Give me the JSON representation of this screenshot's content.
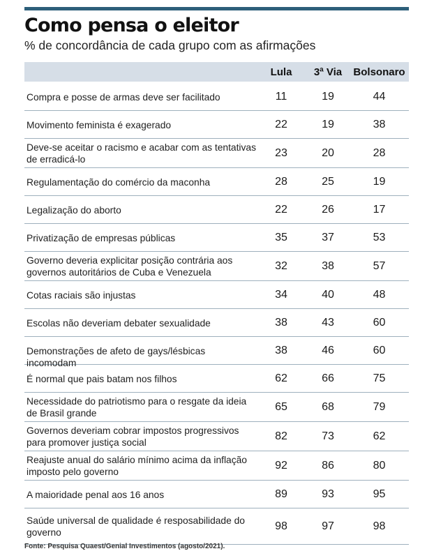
{
  "title": "Como pensa o eleitor",
  "subtitle": "% de concordância de cada grupo com as afirmações",
  "source": "Fonte: Pesquisa Quaest/Genial Investimentos (agosto/2021).",
  "colors": {
    "accent": "#2d5f7a",
    "header_bg": "#d6dee7",
    "rule": "#9eb0bd"
  },
  "chart_data": {
    "type": "table",
    "title": "Como pensa o eleitor",
    "subtitle": "% de concordância de cada grupo com as afirmações",
    "columns": [
      "Lula",
      "3ª Via",
      "Bolsonaro"
    ],
    "rows": [
      {
        "statement": "Compra e posse de armas deve ser facilitado",
        "values": [
          11,
          19,
          44
        ]
      },
      {
        "statement": "Movimento feminista é exagerado",
        "values": [
          22,
          19,
          38
        ]
      },
      {
        "statement": "Deve-se aceitar o racismo e acabar com as tentativas de erradicá-lo",
        "values": [
          23,
          20,
          28
        ]
      },
      {
        "statement": "Regulamentação do comércio da maconha",
        "values": [
          28,
          25,
          19
        ]
      },
      {
        "statement": "Legalização do aborto",
        "values": [
          22,
          26,
          17
        ]
      },
      {
        "statement": "Privatização de empresas públicas",
        "values": [
          35,
          37,
          53
        ]
      },
      {
        "statement": "Governo deveria explicitar posição contrária aos governos autoritários de Cuba e Venezuela",
        "values": [
          32,
          38,
          57
        ]
      },
      {
        "statement": "Cotas raciais são injustas",
        "values": [
          34,
          40,
          48
        ]
      },
      {
        "statement": "Escolas não deveriam debater sexualidade",
        "values": [
          38,
          43,
          60
        ]
      },
      {
        "statement": "Demonstrações de afeto de gays/lésbicas incomodam",
        "values": [
          38,
          46,
          60
        ]
      },
      {
        "statement": "É normal que pais batam nos filhos",
        "values": [
          62,
          66,
          75
        ]
      },
      {
        "statement": "Necessidade do patriotismo para o resgate da ideia de Brasil grande",
        "values": [
          65,
          68,
          79
        ]
      },
      {
        "statement": "Governos deveriam cobrar impostos progressivos para promover justiça social",
        "values": [
          82,
          73,
          62
        ]
      },
      {
        "statement": "Reajuste anual do salário mínimo acima da inflação imposto pelo governo",
        "values": [
          92,
          86,
          80
        ]
      },
      {
        "statement": "A maioridade penal aos 16 anos",
        "values": [
          89,
          93,
          95
        ]
      },
      {
        "statement": "Saúde universal de qualidade é resposabilidade do governo",
        "values": [
          98,
          97,
          98
        ]
      }
    ]
  }
}
